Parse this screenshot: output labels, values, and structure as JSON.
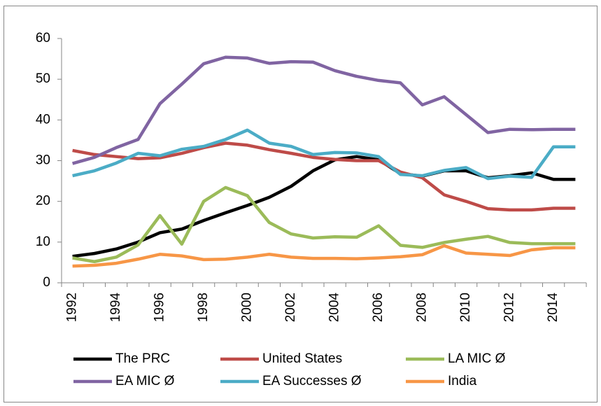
{
  "chart_data": {
    "type": "line",
    "categories": [
      "1992",
      null,
      "1994",
      null,
      "1996",
      null,
      "1998",
      null,
      "2000",
      null,
      "2002",
      null,
      "2004",
      null,
      "2006",
      null,
      "2008",
      null,
      "2010",
      null,
      "2012",
      null,
      "2014",
      null
    ],
    "series": [
      {
        "name": "The PRC",
        "color": "#000000",
        "values": [
          6.5,
          7.2,
          8.3,
          10,
          12.3,
          13.2,
          15.3,
          17.2,
          19,
          21,
          23.7,
          27.5,
          30.2,
          31,
          30.2,
          26.8,
          26.2,
          27.5,
          27.5,
          25.8,
          26.3,
          27,
          25.4,
          25.4
        ]
      },
      {
        "name": "United States",
        "color": "#be4b48",
        "values": [
          32.5,
          31.5,
          31,
          30.5,
          30.7,
          31.8,
          33.2,
          34.3,
          33.8,
          32.7,
          31.8,
          30.8,
          30.3,
          30,
          30,
          27.2,
          25.8,
          21.6,
          20,
          18.2,
          17.9,
          17.9,
          18.3,
          18.3
        ]
      },
      {
        "name": "LA MIC Ø",
        "color": "#9bbb59",
        "values": [
          6.1,
          5.2,
          6.3,
          9.3,
          16.5,
          9.5,
          20,
          23.4,
          21.4,
          14.8,
          12,
          11,
          11.3,
          11.2,
          14,
          9.2,
          8.7,
          9.9,
          10.7,
          11.4,
          9.9,
          9.6,
          9.6,
          9.6
        ]
      },
      {
        "name": "EA MIC Ø",
        "color": "#8064a2",
        "values": [
          29.3,
          30.8,
          33.2,
          35.2,
          44,
          48.8,
          53.8,
          55.4,
          55.2,
          53.9,
          54.3,
          54.2,
          52.1,
          50.7,
          49.7,
          49.1,
          43.7,
          45.7,
          41.3,
          36.9,
          37.7,
          37.6,
          37.7,
          37.7
        ]
      },
      {
        "name": "EA Successes Ø",
        "color": "#4bacc6",
        "values": [
          26.3,
          27.5,
          29.4,
          31.8,
          31.2,
          32.8,
          33.5,
          35.2,
          37.5,
          34.3,
          33.5,
          31.5,
          32,
          31.9,
          31,
          26.6,
          26.3,
          27.6,
          28.3,
          25.6,
          26.2,
          25.9,
          33.4,
          33.4
        ]
      },
      {
        "name": "India",
        "color": "#f79646",
        "values": [
          4.1,
          4.3,
          4.8,
          5.8,
          7,
          6.6,
          5.7,
          5.8,
          6.3,
          7,
          6.3,
          6,
          6,
          5.9,
          6.1,
          6.4,
          6.9,
          9.1,
          7.3,
          7,
          6.7,
          8.1,
          8.6,
          8.6
        ]
      }
    ],
    "ylim": [
      0,
      60
    ],
    "yticks": [
      0,
      10,
      20,
      30,
      40,
      50,
      60
    ],
    "grid": false,
    "legend": "bottom"
  }
}
